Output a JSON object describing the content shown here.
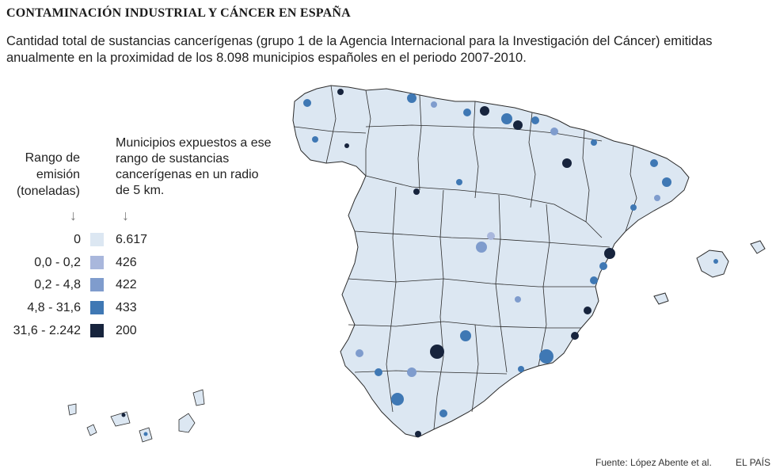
{
  "title": "CONTAMINACIÓN INDUSTRIAL Y CÁNCER EN ESPAÑA",
  "subtitle": "Cantidad total de sustancias cancerígenas (grupo 1 de la Agencia Internacional para la Investigación del Cáncer) emitidas anualmente en la proximidad de los 8.098 municipios españoles en el periodo 2007-2010.",
  "legend": {
    "range_header": "Rango de\nemisión\n(toneladas)",
    "count_header": "Municipios expuestos a ese rango de sustancias cancerígenas en un radio de 5 km.",
    "arrow_glyph": "↓",
    "rows": [
      {
        "range": "0",
        "count": "6.617",
        "color": "#dce7f2"
      },
      {
        "range": "0,0 - 0,2",
        "count": "426",
        "color": "#a9b7dc"
      },
      {
        "range": "0,2 - 4,8",
        "count": "422",
        "color": "#7f9ccd"
      },
      {
        "range": "4,8 - 31,6",
        "count": "433",
        "color": "#3f78b4"
      },
      {
        "range": "31,6 - 2.242",
        "count": "200",
        "color": "#17243d"
      }
    ]
  },
  "map": {
    "base_color": "#dce7f2",
    "border_color": "#2b2b2b"
  },
  "footer": {
    "source": "Fuente: López Abente et al.",
    "brand": "EL PAÍS"
  }
}
